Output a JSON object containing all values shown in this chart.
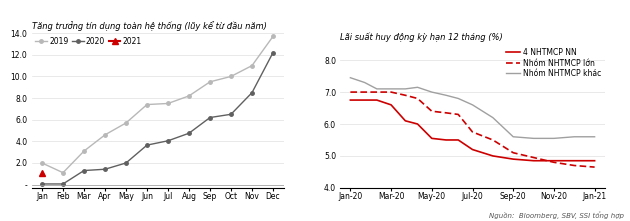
{
  "chart1": {
    "title": "Tăng trưởng tín dụng toàn hệ thống (lũy kể từ đầu năm)",
    "months": [
      "Jan",
      "Feb",
      "Mar",
      "Apr",
      "May",
      "Jun",
      "Jul",
      "Aug",
      "Sep",
      "Oct",
      "Nov",
      "Dec"
    ],
    "series_2019": [
      2.0,
      1.1,
      3.1,
      4.6,
      5.7,
      7.4,
      7.5,
      8.2,
      9.5,
      10.0,
      11.0,
      13.7
    ],
    "series_2020": [
      0.06,
      0.06,
      1.3,
      1.42,
      2.0,
      3.65,
      4.05,
      4.75,
      6.2,
      6.5,
      8.5,
      12.2
    ],
    "series_2021": [
      1.03
    ],
    "ylim": [
      -0.3,
      14.0
    ],
    "yticks": [
      0,
      2.0,
      4.0,
      6.0,
      8.0,
      10.0,
      12.0,
      14.0
    ],
    "color_2019": "#b8b8b8",
    "color_2020": "#606060",
    "color_2021": "#cc0000",
    "marker_2019": "o",
    "marker_2020": "o",
    "marker_2021": "^"
  },
  "chart2": {
    "title": "Lãi suất huy động kỳ hạn 12 tháng (%)",
    "x_labels": [
      "Jan-20",
      "Mar-20",
      "May-20",
      "Jul-20",
      "Sep-20",
      "Nov-20",
      "Jan-21"
    ],
    "x_ticks": [
      0,
      2,
      4,
      6,
      8,
      10,
      12
    ],
    "series_nn": [
      6.75,
      6.75,
      6.75,
      6.6,
      6.1,
      6.0,
      5.55,
      5.5,
      5.5,
      5.2,
      5.0,
      4.9,
      4.85,
      4.85,
      4.85,
      4.85
    ],
    "series_lon": [
      7.0,
      7.0,
      7.0,
      7.0,
      6.9,
      6.8,
      6.4,
      6.35,
      6.3,
      5.75,
      5.5,
      5.1,
      4.95,
      4.8,
      4.7,
      4.65
    ],
    "series_khac": [
      7.45,
      7.3,
      7.1,
      7.1,
      7.1,
      7.15,
      7.0,
      6.9,
      6.8,
      6.6,
      6.2,
      5.6,
      5.55,
      5.55,
      5.6,
      5.6
    ],
    "x_data": [
      0,
      0.7,
      1.3,
      2,
      2.7,
      3.3,
      4,
      4.7,
      5.3,
      6,
      7,
      8,
      9,
      10,
      11,
      12
    ],
    "ylim": [
      4.0,
      8.5
    ],
    "yticks": [
      4.0,
      5.0,
      6.0,
      7.0,
      8.0
    ],
    "color_nn": "#cc0000",
    "color_lon": "#cc0000",
    "color_khac": "#a0a0a0",
    "legend_nn": "4 NHTMCP NN",
    "legend_lon": "Nhóm NHTMCP lớn",
    "legend_khac": "Nhóm NHTMCP khác",
    "source": "Nguồn:  Bloomberg, SBV, SSI tổng hợp"
  }
}
